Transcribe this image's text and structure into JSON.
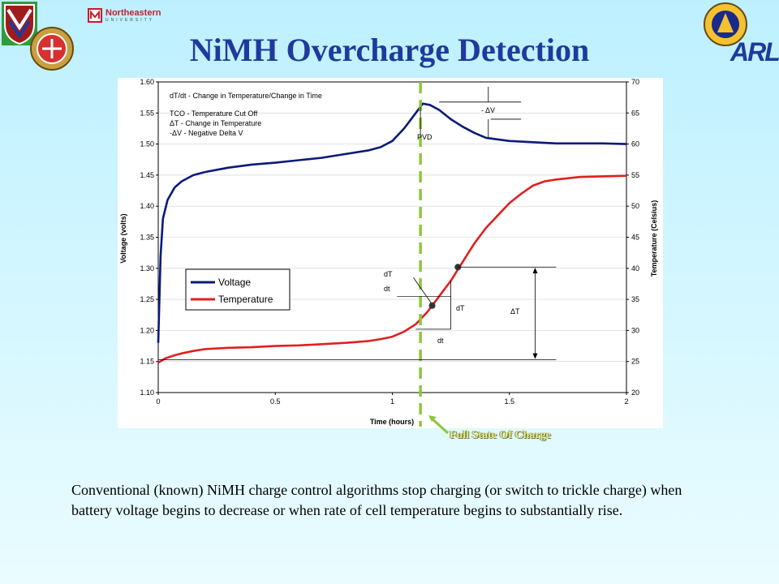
{
  "slide": {
    "title": "NiMH Overcharge Detection",
    "caption": "Conventional (known) NiMH charge control algorithms stop charging (or switch to trickle charge) when battery voltage begins to decrease or when rate of cell temperature begins to substantially rise.",
    "callout": "Full State Of Charge"
  },
  "logos": {
    "northeastern_name": "Northeastern",
    "northeastern_sub": "UNIVERSITY",
    "arl": "ARL"
  },
  "colors": {
    "title": "#1f3a9c",
    "voltage": "#0a1a7a",
    "temperature": "#e02020",
    "marker": "#8dc63f"
  },
  "chart_data": {
    "type": "line",
    "xlabel": "Time (hours)",
    "ylabel": "Voltage (volts)",
    "y2label": "Temperature (Celsius)",
    "xlim": [
      0,
      2
    ],
    "ylim": [
      1.1,
      1.6
    ],
    "y2lim": [
      20,
      70
    ],
    "x_ticks": [
      "0",
      "0.5",
      "1",
      "1.5",
      "2"
    ],
    "y_ticks": [
      "1.10",
      "1.15",
      "1.20",
      "1.25",
      "1.30",
      "1.35",
      "1.40",
      "1.45",
      "1.50",
      "1.55",
      "1.60"
    ],
    "y2_ticks": [
      "20",
      "25",
      "30",
      "35",
      "40",
      "45",
      "50",
      "55",
      "60",
      "65",
      "70"
    ],
    "legend_position": "middle-left",
    "series": [
      {
        "name": "Voltage",
        "axis": "left",
        "color": "#0a1a7a",
        "x": [
          0,
          0.01,
          0.02,
          0.04,
          0.07,
          0.1,
          0.15,
          0.2,
          0.3,
          0.4,
          0.5,
          0.6,
          0.7,
          0.8,
          0.9,
          0.95,
          1.0,
          1.05,
          1.1,
          1.13,
          1.16,
          1.2,
          1.25,
          1.3,
          1.35,
          1.4,
          1.5,
          1.6,
          1.7,
          1.8,
          1.9,
          2.0
        ],
        "values": [
          1.18,
          1.32,
          1.38,
          1.41,
          1.43,
          1.44,
          1.45,
          1.455,
          1.462,
          1.467,
          1.47,
          1.474,
          1.478,
          1.484,
          1.49,
          1.495,
          1.505,
          1.525,
          1.55,
          1.565,
          1.563,
          1.555,
          1.54,
          1.528,
          1.518,
          1.51,
          1.505,
          1.503,
          1.501,
          1.501,
          1.501,
          1.5
        ]
      },
      {
        "name": "Temperature",
        "axis": "right",
        "color": "#e02020",
        "x": [
          0,
          0.03,
          0.07,
          0.1,
          0.15,
          0.2,
          0.3,
          0.4,
          0.5,
          0.6,
          0.7,
          0.8,
          0.9,
          0.95,
          1.0,
          1.05,
          1.1,
          1.15,
          1.2,
          1.25,
          1.3,
          1.35,
          1.4,
          1.45,
          1.5,
          1.55,
          1.6,
          1.65,
          1.7,
          1.8,
          1.9,
          2.0
        ],
        "values": [
          24.8,
          25.5,
          26.0,
          26.3,
          26.7,
          27.0,
          27.2,
          27.3,
          27.5,
          27.6,
          27.8,
          28.0,
          28.3,
          28.6,
          29.0,
          29.8,
          31.0,
          33.0,
          35.5,
          38.0,
          41.0,
          44.0,
          46.5,
          48.5,
          50.5,
          52.0,
          53.3,
          54.0,
          54.3,
          54.7,
          54.8,
          54.9
        ]
      }
    ],
    "annotations": {
      "definitions": [
        "dT/dt - Change in Temperature/Change in Time",
        "TCO - Temperature Cut Off",
        "ΔT - Change in Temperature",
        "-ΔV - Negative Delta V"
      ],
      "neg_delta_v": "- ΔV",
      "pvd": "PVD",
      "dT_over_dt_num": "dT",
      "dT_over_dt_den": "dt",
      "slope_dT": "dT",
      "slope_dt": "dt",
      "delta_T": "ΔT"
    },
    "full_charge_time": 1.12
  }
}
